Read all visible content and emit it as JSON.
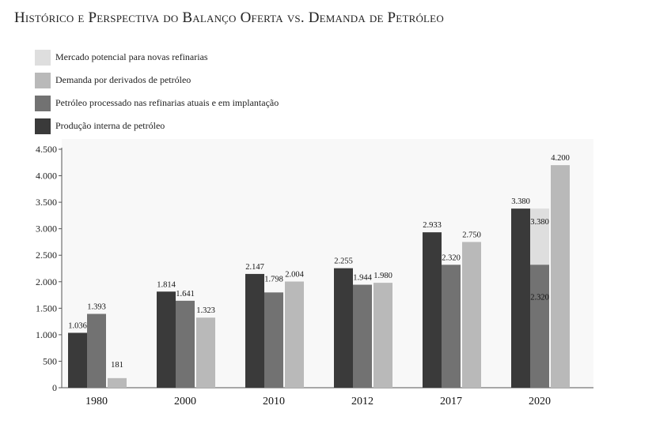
{
  "chart_data": {
    "type": "bar",
    "title": "Histórico e Perspectiva do Balanço Oferta vs. Demanda de Petróleo",
    "xlabel": "",
    "ylabel": "",
    "ylim": [
      0,
      4500
    ],
    "yticks": [
      0,
      500,
      1000,
      1500,
      2000,
      2500,
      3000,
      3500,
      4000,
      4500
    ],
    "ytick_labels": [
      "0",
      "500",
      "1.000",
      "1.500",
      "2.000",
      "2.500",
      "3.000",
      "3.500",
      "4.000",
      "4.500"
    ],
    "categories": [
      "1980",
      "2000",
      "2010",
      "2012",
      "2017",
      "2020"
    ],
    "legend_position": "top-left",
    "grid": false,
    "series": [
      {
        "name": "Produção interna de petróleo",
        "color": "#3a3a3a",
        "values": [
          1036,
          1814,
          2147,
          2255,
          2933,
          3380
        ],
        "labels": [
          "1.036",
          "1.814",
          "2.147",
          "2.255",
          "2.933",
          "3.380"
        ]
      },
      {
        "name": "Petróleo processado nas refinarias atuais e em implantação",
        "color": "#727272",
        "values": [
          1393,
          1641,
          1798,
          1944,
          2320,
          2320
        ],
        "labels": [
          "1.393",
          "1.641",
          "1.798",
          "1.944",
          "2.320",
          "2.320"
        ]
      },
      {
        "name": "Mercado potencial para novas refinarias",
        "color": "#dedede",
        "values": [
          null,
          null,
          null,
          null,
          null,
          3380
        ],
        "labels": [
          "",
          "",
          "",
          "",
          "",
          "3.380"
        ]
      },
      {
        "name": "Demanda por derivados de petróleo",
        "color": "#b9b9b9",
        "values": [
          181,
          1323,
          2004,
          1980,
          2750,
          4200
        ],
        "labels": [
          "181",
          "1.323",
          "2.004",
          "1.980",
          "2.750",
          "4.200"
        ]
      }
    ],
    "legend_order": [
      "Mercado potencial para novas refinarias",
      "Demanda por derivados de petróleo",
      "Petróleo processado nas refinarias atuais e em implantação",
      "Produção interna de petróleo"
    ]
  }
}
